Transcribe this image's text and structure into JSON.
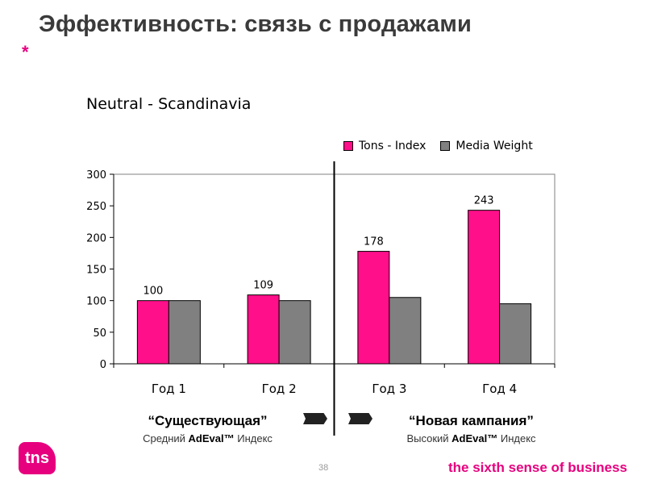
{
  "slide": {
    "title": "Эффективность: связь с продажами",
    "asterisk": "*",
    "page_number": "38",
    "tagline": "the sixth sense of business",
    "logo_text": "tns"
  },
  "colors": {
    "accent": "#e6007e",
    "series1": "#ff0f8a",
    "series2": "#808080"
  },
  "notes": {
    "left": {
      "quote": "“Существующая”",
      "prefix": "Средний ",
      "bold": "AdEval™",
      "suffix": " Индекс"
    },
    "right": {
      "quote": "“Новая кампания”",
      "prefix": "Высокий ",
      "bold": "AdEval™",
      "suffix": " Индекс"
    }
  },
  "chart_data": {
    "type": "bar",
    "title": "Neutral - Scandinavia",
    "categories": [
      "Год 1",
      "Год 2",
      "Год 3",
      "Год 4"
    ],
    "series": [
      {
        "name": "Tons - Index",
        "values": [
          100,
          109,
          178,
          243
        ],
        "color": "#ff0f8a",
        "labels": [
          "100",
          "109",
          "178",
          "243"
        ]
      },
      {
        "name": "Media Weight",
        "values": [
          100,
          100,
          105,
          95
        ],
        "color": "#808080"
      }
    ],
    "ylim": [
      0,
      300
    ],
    "yticks": [
      0,
      50,
      100,
      150,
      200,
      250,
      300
    ],
    "grid": false,
    "legend": "top-right",
    "divider_after_category": 2
  }
}
